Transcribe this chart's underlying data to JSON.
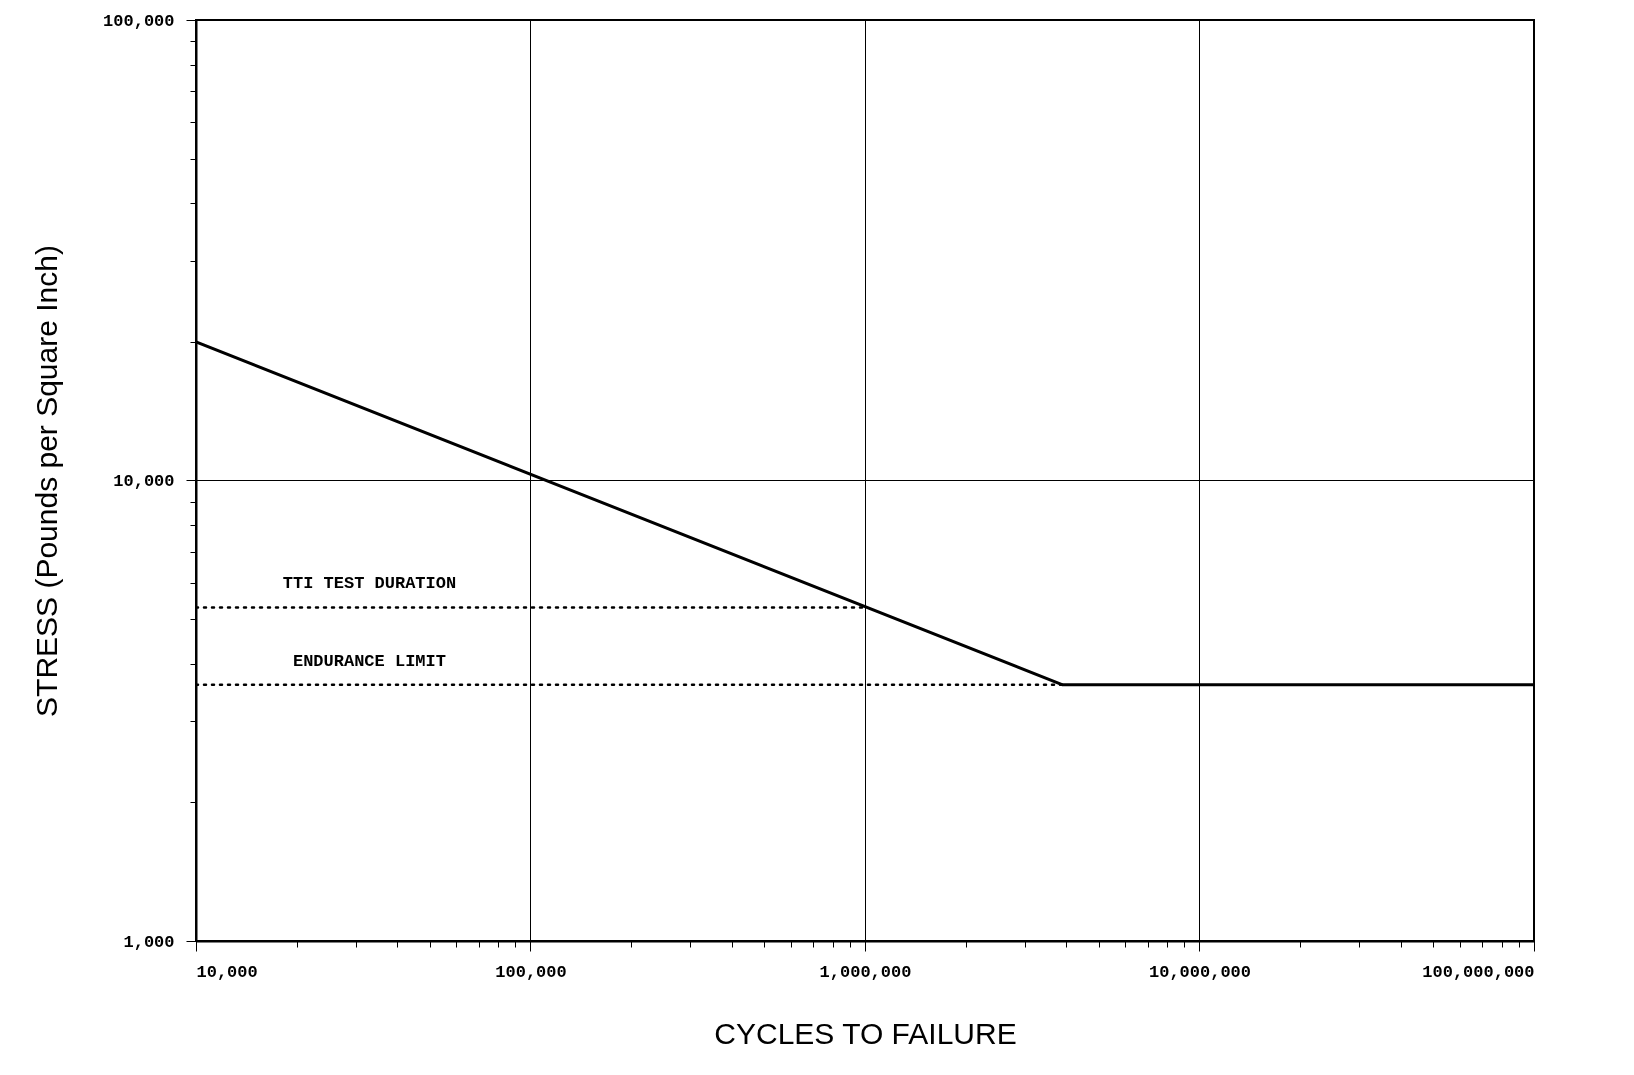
{
  "chart_data": {
    "type": "line",
    "xlabel": "CYCLES TO FAILURE",
    "ylabel": "STRESS (Pounds per Square Inch)",
    "log": "xy",
    "grid": true,
    "xlim": [
      10000,
      100000000
    ],
    "ylim": [
      1000,
      100000
    ],
    "xticks": [
      {
        "value": 10000,
        "label": "10,000"
      },
      {
        "value": 100000,
        "label": "100,000"
      },
      {
        "value": 1000000,
        "label": "1,000,000"
      },
      {
        "value": 10000000,
        "label": "10,000,000"
      },
      {
        "value": 100000000,
        "label": "100,000,000"
      }
    ],
    "yticks": [
      {
        "value": 1000,
        "label": "1,000"
      },
      {
        "value": 10000,
        "label": "10,000"
      },
      {
        "value": 100000,
        "label": "100,000"
      }
    ],
    "series": [
      {
        "color": "#000000",
        "line_style": "solid",
        "x": [
          10000,
          3900000,
          100000000
        ],
        "values": [
          20000,
          3600,
          3600
        ]
      },
      {
        "color": "#000000",
        "line_style": "dotted",
        "x": [
          10000,
          1000000
        ],
        "values": [
          5300,
          5300
        ]
      },
      {
        "color": "#000000",
        "line_style": "dotted",
        "x": [
          10000,
          3900000
        ],
        "values": [
          3600,
          3600
        ]
      }
    ],
    "annotations": [
      {
        "text": "TTI TEST DURATION",
        "x": 33000,
        "y": 5300
      },
      {
        "text": "ENDURANCE LIMIT",
        "x": 33000,
        "y": 3600
      }
    ]
  }
}
